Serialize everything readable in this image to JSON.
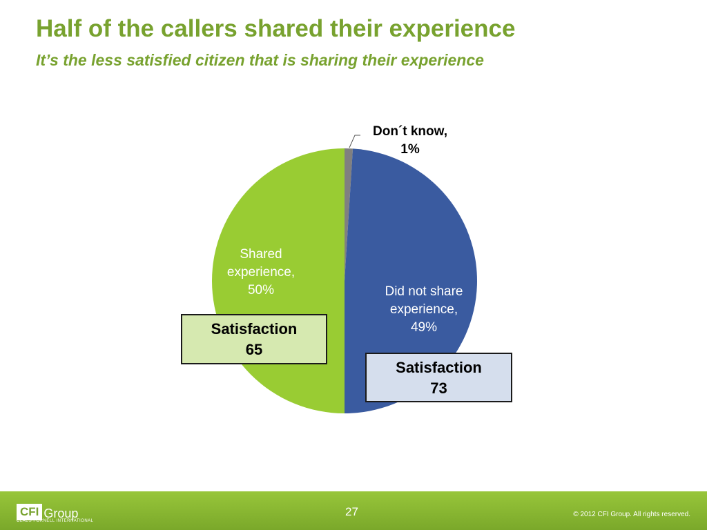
{
  "slide": {
    "title": "Half of the callers shared their experience",
    "subtitle": "It’s the less satisfied citizen that is sharing their experience"
  },
  "chart_data": {
    "type": "pie",
    "title": "",
    "slices": [
      {
        "name": "Don´t know,",
        "value": 1,
        "value_label": "1%",
        "color": "#808080"
      },
      {
        "name": "Did not share experience,",
        "value": 49,
        "value_label": "49%",
        "color": "#3a5ba0"
      },
      {
        "name": "Shared experience,",
        "value": 50,
        "value_label": "50%",
        "color": "#99cc33"
      }
    ],
    "start_angle": "12 o'clock, clockwise",
    "legend": "none (labels on slices)"
  },
  "labels": {
    "shared_line1": "Shared",
    "shared_line2": "experience,",
    "shared_pct": "50%",
    "notshared_line1": "Did not share",
    "notshared_line2": "experience,",
    "notshared_pct": "49%",
    "dontknow_line1": "Don´t know,",
    "dontknow_pct": "1%"
  },
  "satisfaction": {
    "shared": {
      "label": "Satisfaction",
      "value": "65",
      "color": "#d6e9b0"
    },
    "not_shared": {
      "label": "Satisfaction",
      "value": "73",
      "color": "#d5deed"
    }
  },
  "footer": {
    "logo_cfi": "CFI",
    "logo_group": "Group",
    "logo_sub": "CLAES FORNELL INTERNATIONAL",
    "page_number": "27",
    "copyright": "© 2012 CFI Group. All rights reserved."
  }
}
